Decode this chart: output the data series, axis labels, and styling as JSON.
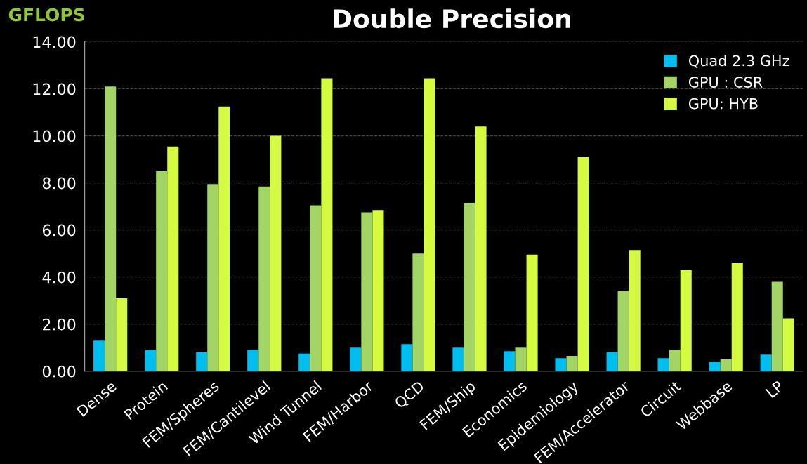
{
  "chart_data": {
    "type": "bar",
    "title": "Double Precision",
    "ylabel": "GFLOPS",
    "categories": [
      "Dense",
      "Protein",
      "FEM/Spheres",
      "FEM/Cantilevel",
      "Wind Tunnel",
      "FEM/Harbor",
      "QCD",
      "FEM/Ship",
      "Economics",
      "Epidemiology",
      "FEM/Accelerator",
      "Circuit",
      "Webbase",
      "LP"
    ],
    "series": [
      {
        "name": "Quad 2.3 GHz",
        "color": "#00bff0",
        "values": [
          1.3,
          0.9,
          0.8,
          0.9,
          0.75,
          1.0,
          1.15,
          1.0,
          0.85,
          0.55,
          0.8,
          0.55,
          0.4,
          0.7
        ]
      },
      {
        "name": "GPU : CSR",
        "color": "#a2d466",
        "values": [
          12.1,
          8.5,
          7.95,
          7.85,
          7.05,
          6.75,
          5.0,
          7.15,
          1.0,
          0.65,
          3.4,
          0.9,
          0.5,
          3.8
        ]
      },
      {
        "name": "GPU: HYB",
        "color": "#d4fa41",
        "values": [
          3.1,
          9.55,
          11.25,
          10.0,
          12.45,
          6.85,
          12.45,
          10.4,
          4.95,
          9.1,
          5.15,
          4.3,
          4.6,
          2.25
        ]
      }
    ],
    "ylim": [
      0,
      14
    ],
    "yticks": [
      {
        "value": 0,
        "label": "0.00"
      },
      {
        "value": 2,
        "label": "2.00"
      },
      {
        "value": 4,
        "label": "4.00"
      },
      {
        "value": 6,
        "label": "6.00"
      },
      {
        "value": 8,
        "label": "8.00"
      },
      {
        "value": 10,
        "label": "10.00"
      },
      {
        "value": 12,
        "label": "12.00"
      },
      {
        "value": 14,
        "label": "14.00"
      }
    ],
    "grid": "y",
    "legend": "top right"
  }
}
